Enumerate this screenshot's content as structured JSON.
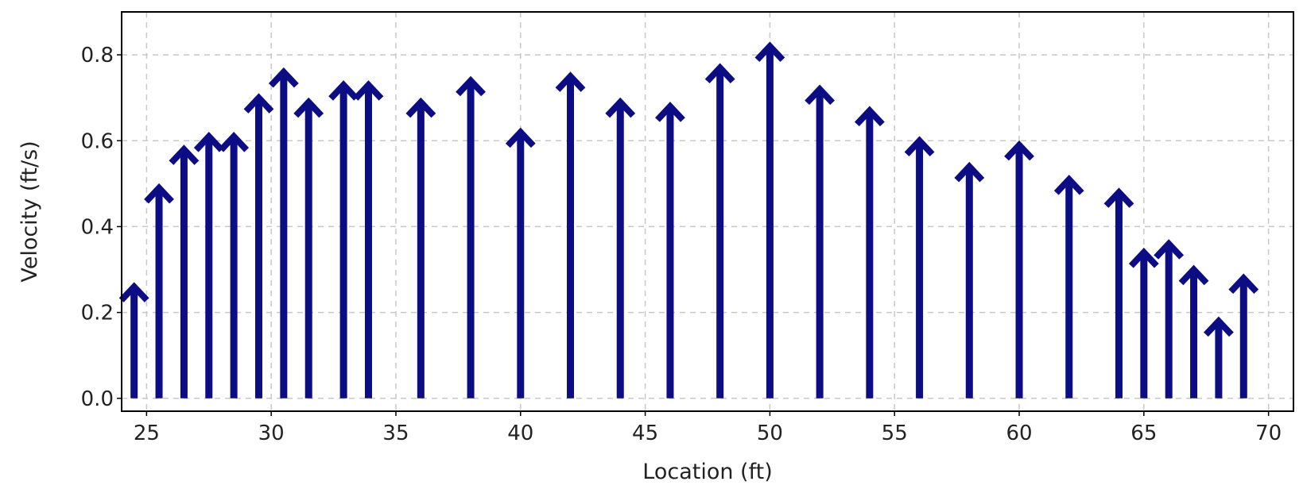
{
  "chart_data": {
    "type": "quiver",
    "xlabel": "Location (ft)",
    "ylabel": "Velocity (ft/s)",
    "xlim": [
      24,
      71
    ],
    "ylim": [
      -0.03,
      0.9
    ],
    "xticks": [
      25,
      30,
      35,
      40,
      45,
      50,
      55,
      60,
      65,
      70
    ],
    "xtick_labels": [
      "25",
      "30",
      "35",
      "40",
      "45",
      "50",
      "55",
      "60",
      "65",
      "70"
    ],
    "yticks": [
      0.0,
      0.2,
      0.4,
      0.6,
      0.8
    ],
    "ytick_labels": [
      "0.0",
      "0.2",
      "0.4",
      "0.6",
      "0.8"
    ],
    "grid": true,
    "arrow_color": "#0c0c84",
    "points": [
      {
        "x": 24.5,
        "y": 0.26
      },
      {
        "x": 25.5,
        "y": 0.49
      },
      {
        "x": 26.5,
        "y": 0.58
      },
      {
        "x": 27.5,
        "y": 0.61
      },
      {
        "x": 28.5,
        "y": 0.61
      },
      {
        "x": 29.5,
        "y": 0.7
      },
      {
        "x": 30.5,
        "y": 0.76
      },
      {
        "x": 31.5,
        "y": 0.69
      },
      {
        "x": 32.9,
        "y": 0.73
      },
      {
        "x": 33.9,
        "y": 0.73
      },
      {
        "x": 36.0,
        "y": 0.69
      },
      {
        "x": 38.0,
        "y": 0.74
      },
      {
        "x": 40.0,
        "y": 0.62
      },
      {
        "x": 42.0,
        "y": 0.75
      },
      {
        "x": 44.0,
        "y": 0.69
      },
      {
        "x": 46.0,
        "y": 0.68
      },
      {
        "x": 48.0,
        "y": 0.77
      },
      {
        "x": 50.0,
        "y": 0.82
      },
      {
        "x": 52.0,
        "y": 0.72
      },
      {
        "x": 54.0,
        "y": 0.67
      },
      {
        "x": 56.0,
        "y": 0.6
      },
      {
        "x": 58.0,
        "y": 0.54
      },
      {
        "x": 60.0,
        "y": 0.59
      },
      {
        "x": 62.0,
        "y": 0.51
      },
      {
        "x": 64.0,
        "y": 0.48
      },
      {
        "x": 65.0,
        "y": 0.34
      },
      {
        "x": 66.0,
        "y": 0.36
      },
      {
        "x": 67.0,
        "y": 0.3
      },
      {
        "x": 68.0,
        "y": 0.18
      },
      {
        "x": 69.0,
        "y": 0.28
      }
    ]
  }
}
